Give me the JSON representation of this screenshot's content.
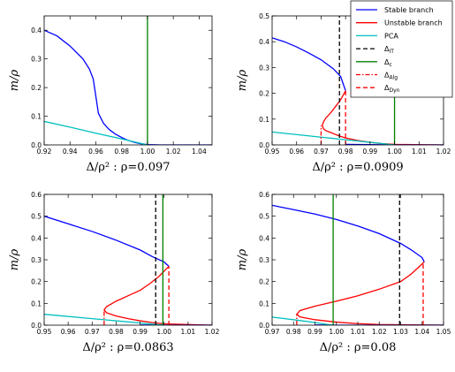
{
  "colors": {
    "stable": "#0000ff",
    "unstable": "#ff0000",
    "pca": "#00bfbf",
    "delta_ip": "#000000",
    "delta_c": "#008000",
    "delta_alg": "#ff0000",
    "delta_dyn": "#ff0000"
  },
  "legend": {
    "placement": "top-right of upper-right panel",
    "items": [
      {
        "key": "stable",
        "label": "Stable branch",
        "style": "solid"
      },
      {
        "key": "unstable",
        "label": "Unstable branch",
        "style": "solid"
      },
      {
        "key": "pca",
        "label": "PCA",
        "style": "solid"
      },
      {
        "key": "delta_ip",
        "label": "Δ",
        "sub": "IT",
        "style": "dashed"
      },
      {
        "key": "delta_c",
        "label": "Δ",
        "sub": "c",
        "style": "solid"
      },
      {
        "key": "delta_alg",
        "label": "Δ",
        "sub": "Alg",
        "style": "dashdot"
      },
      {
        "key": "delta_dyn",
        "label": "Δ",
        "sub": "Dyn",
        "style": "dashed"
      }
    ]
  },
  "chart_data": [
    {
      "type": "line",
      "xlabel": "Δ/ρ² : ρ=0.097",
      "ylabel": "m/ρ",
      "xlim": [
        0.92,
        1.05
      ],
      "ylim": [
        0,
        0.45
      ],
      "xticks": [
        "0.92",
        "0.94",
        "0.96",
        "0.98",
        "1.00",
        "1.02",
        "1.04"
      ],
      "yticks": [
        "0.0",
        "0.1",
        "0.2",
        "0.3",
        "0.4"
      ],
      "grid": false,
      "series": [
        {
          "key": "stable",
          "x": [
            0.92,
            0.93,
            0.94,
            0.95,
            0.955,
            0.958,
            0.96,
            0.962,
            0.966,
            0.97,
            0.975,
            0.98,
            0.985,
            0.99,
            0.995,
            1.0,
            1.01,
            1.03,
            1.05
          ],
          "y": [
            0.4,
            0.38,
            0.345,
            0.3,
            0.265,
            0.23,
            0.17,
            0.11,
            0.075,
            0.055,
            0.038,
            0.026,
            0.016,
            0.009,
            0.004,
            0.001,
            0.0,
            0.0,
            0.0
          ]
        },
        {
          "key": "pca",
          "x": [
            0.92,
            0.94,
            0.96,
            0.98,
            1.0
          ],
          "y": [
            0.082,
            0.062,
            0.041,
            0.021,
            0.0
          ]
        }
      ],
      "vlines": [
        {
          "key": "delta_c",
          "x": 1.0,
          "style": "solid"
        }
      ]
    },
    {
      "type": "line",
      "xlabel": "Δ/ρ² : ρ=0.0909",
      "ylabel": "m/ρ",
      "xlim": [
        0.95,
        1.02
      ],
      "ylim": [
        0,
        0.5
      ],
      "xticks": [
        "0.95",
        "0.96",
        "0.97",
        "0.98",
        "0.99",
        "1.00",
        "1.01",
        "1.02"
      ],
      "yticks": [
        "0.0",
        "0.1",
        "0.2",
        "0.3",
        "0.4",
        "0.5"
      ],
      "grid": false,
      "series": [
        {
          "key": "stable",
          "x": [
            0.95,
            0.955,
            0.96,
            0.965,
            0.97,
            0.975,
            0.978,
            0.98
          ],
          "y": [
            0.415,
            0.4,
            0.38,
            0.356,
            0.33,
            0.295,
            0.265,
            0.21
          ]
        },
        {
          "key": "unstable",
          "x": [
            0.98,
            0.978,
            0.976,
            0.974,
            0.972,
            0.971,
            0.9705,
            0.971,
            0.972,
            0.974,
            0.976,
            0.978,
            0.98,
            0.985,
            0.99,
            0.995,
            1.0,
            1.02
          ],
          "y": [
            0.21,
            0.175,
            0.15,
            0.125,
            0.105,
            0.09,
            0.075,
            0.062,
            0.055,
            0.048,
            0.04,
            0.033,
            0.027,
            0.017,
            0.01,
            0.005,
            0.002,
            0.0
          ]
        },
        {
          "key": "stable",
          "x": [
            0.98,
            0.99,
            1.0,
            1.01,
            1.02
          ],
          "y": [
            0.002,
            0.001,
            0.0,
            0.0,
            0.0
          ]
        },
        {
          "key": "pca",
          "x": [
            0.95,
            0.97,
            0.99,
            1.0
          ],
          "y": [
            0.05,
            0.03,
            0.01,
            0.0
          ]
        }
      ],
      "vlines": [
        {
          "key": "delta_ip",
          "x": 0.9775,
          "y1": 0.5,
          "style": "dashed"
        },
        {
          "key": "delta_c",
          "x": 1.0,
          "y1": 0.5,
          "style": "solid"
        },
        {
          "key": "delta_alg",
          "x": 0.97,
          "y1": 0.075,
          "style": "dashdot"
        },
        {
          "key": "delta_dyn",
          "x": 0.98,
          "y1": 0.21,
          "style": "dashed"
        }
      ]
    },
    {
      "type": "line",
      "xlabel": "Δ/ρ² : ρ=0.0863",
      "ylabel": "m/ρ",
      "xlim": [
        0.95,
        1.02
      ],
      "ylim": [
        0,
        0.6
      ],
      "xticks": [
        "0.95",
        "0.96",
        "0.97",
        "0.98",
        "0.99",
        "1.00",
        "1.01",
        "1.02"
      ],
      "yticks": [
        "0.0",
        "0.1",
        "0.2",
        "0.3",
        "0.4",
        "0.5",
        "0.6"
      ],
      "grid": false,
      "series": [
        {
          "key": "stable",
          "x": [
            0.95,
            0.96,
            0.97,
            0.98,
            0.99,
            0.995,
            1.0,
            1.002
          ],
          "y": [
            0.5,
            0.465,
            0.43,
            0.39,
            0.345,
            0.315,
            0.29,
            0.27
          ]
        },
        {
          "key": "unstable",
          "x": [
            1.002,
            0.998,
            0.994,
            0.99,
            0.985,
            0.98,
            0.976,
            0.975,
            0.976,
            0.98,
            0.985,
            0.99,
            0.995,
            1.0,
            1.02
          ],
          "y": [
            0.27,
            0.225,
            0.19,
            0.16,
            0.135,
            0.11,
            0.085,
            0.07,
            0.057,
            0.042,
            0.03,
            0.02,
            0.012,
            0.006,
            0.0
          ]
        },
        {
          "key": "stable",
          "x": [
            0.99,
            1.0,
            1.01,
            1.02
          ],
          "y": [
            0.001,
            0.0,
            0.0,
            0.0
          ]
        },
        {
          "key": "pca",
          "x": [
            0.95,
            0.97,
            0.99,
            1.0
          ],
          "y": [
            0.05,
            0.03,
            0.01,
            0.0
          ]
        }
      ],
      "vlines": [
        {
          "key": "delta_ip",
          "x": 0.9965,
          "y1": 0.6,
          "style": "dashed"
        },
        {
          "key": "delta_c",
          "x": 0.9995,
          "y1": 0.6,
          "style": "solid"
        },
        {
          "key": "delta_alg",
          "x": 0.975,
          "y1": 0.07,
          "style": "dashdot"
        },
        {
          "key": "delta_dyn",
          "x": 1.002,
          "y1": 0.27,
          "style": "dashed"
        }
      ]
    },
    {
      "type": "line",
      "xlabel": "Δ/ρ² : ρ=0.08",
      "ylabel": "m/ρ",
      "xlim": [
        0.97,
        1.05
      ],
      "ylim": [
        0,
        0.6
      ],
      "xticks": [
        "0.97",
        "0.98",
        "0.99",
        "1.00",
        "1.01",
        "1.02",
        "1.03",
        "1.04",
        "1.05"
      ],
      "yticks": [
        "0.0",
        "0.1",
        "0.2",
        "0.3",
        "0.4",
        "0.5",
        "0.6"
      ],
      "grid": false,
      "series": [
        {
          "key": "stable",
          "x": [
            0.97,
            0.98,
            0.99,
            1.0,
            1.01,
            1.02,
            1.03,
            1.035,
            1.04,
            1.041
          ],
          "y": [
            0.55,
            0.53,
            0.51,
            0.485,
            0.455,
            0.42,
            0.375,
            0.345,
            0.31,
            0.29
          ]
        },
        {
          "key": "unstable",
          "x": [
            1.041,
            1.035,
            1.03,
            1.02,
            1.01,
            1.0,
            0.99,
            0.983,
            0.9815,
            0.983,
            0.99,
            1.0,
            1.01,
            1.02,
            1.05
          ],
          "y": [
            0.29,
            0.235,
            0.2,
            0.165,
            0.135,
            0.11,
            0.087,
            0.067,
            0.05,
            0.038,
            0.025,
            0.014,
            0.007,
            0.003,
            0.0
          ]
        },
        {
          "key": "stable",
          "x": [
            0.99,
            1.0,
            1.02,
            1.05
          ],
          "y": [
            0.001,
            0.0,
            0.0,
            0.0
          ]
        },
        {
          "key": "pca",
          "x": [
            0.97,
            0.98,
            0.99,
            0.998
          ],
          "y": [
            0.037,
            0.025,
            0.012,
            0.0
          ]
        }
      ],
      "vlines": [
        {
          "key": "delta_ip",
          "x": 1.0295,
          "y1": 0.6,
          "style": "dashed"
        },
        {
          "key": "delta_c",
          "x": 0.9985,
          "y1": 0.6,
          "style": "solid"
        },
        {
          "key": "delta_alg",
          "x": 0.9815,
          "y1": 0.05,
          "style": "dashdot"
        },
        {
          "key": "delta_dyn",
          "x": 1.0405,
          "y1": 0.29,
          "style": "dashed"
        }
      ]
    }
  ]
}
